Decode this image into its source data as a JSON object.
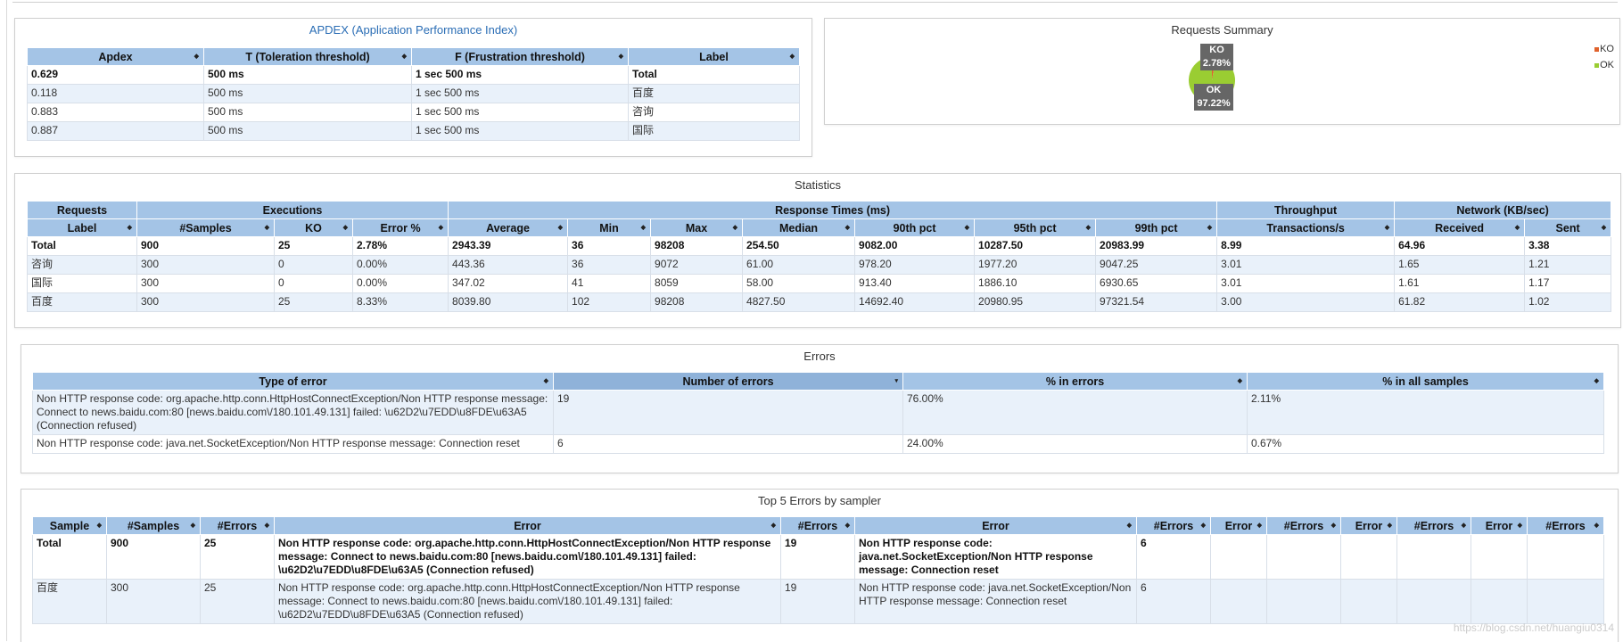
{
  "apdex": {
    "title": "APDEX (Application Performance Index)",
    "headers": [
      "Apdex",
      "T (Toleration threshold)",
      "F (Frustration threshold)",
      "Label"
    ],
    "rows": [
      [
        "0.629",
        "500 ms",
        "1 sec 500 ms",
        "Total"
      ],
      [
        "0.118",
        "500 ms",
        "1 sec 500 ms",
        "百度"
      ],
      [
        "0.883",
        "500 ms",
        "1 sec 500 ms",
        "咨询"
      ],
      [
        "0.887",
        "500 ms",
        "1 sec 500 ms",
        "国际"
      ]
    ]
  },
  "requests_summary": {
    "title": "Requests Summary",
    "ko_label": "KO",
    "ko_pct": "2.78%",
    "ok_label": "OK",
    "ok_pct": "97.22%",
    "legend_ko": "KO",
    "legend_ok": "OK",
    "ko_color": "#e0622c",
    "ok_color": "#9acd32"
  },
  "chart_data": {
    "type": "pie",
    "categories": [
      "KO",
      "OK"
    ],
    "values": [
      2.78,
      97.22
    ],
    "title": "Requests Summary",
    "legend": "top-right"
  },
  "statistics": {
    "title": "Statistics",
    "group_headers": [
      "Requests",
      "Executions",
      "Response Times (ms)",
      "Throughput",
      "Network (KB/sec)"
    ],
    "headers": [
      "Label",
      "#Samples",
      "KO",
      "Error %",
      "Average",
      "Min",
      "Max",
      "Median",
      "90th pct",
      "95th pct",
      "99th pct",
      "Transactions/s",
      "Received",
      "Sent"
    ],
    "rows": [
      [
        "Total",
        "900",
        "25",
        "2.78%",
        "2943.39",
        "36",
        "98208",
        "254.50",
        "9082.00",
        "10287.50",
        "20983.99",
        "8.99",
        "64.96",
        "3.38"
      ],
      [
        "咨询",
        "300",
        "0",
        "0.00%",
        "443.36",
        "36",
        "9072",
        "61.00",
        "978.20",
        "1977.20",
        "9047.25",
        "3.01",
        "1.65",
        "1.21"
      ],
      [
        "国际",
        "300",
        "0",
        "0.00%",
        "347.02",
        "41",
        "8059",
        "58.00",
        "913.40",
        "1886.10",
        "6930.65",
        "3.01",
        "1.61",
        "1.17"
      ],
      [
        "百度",
        "300",
        "25",
        "8.33%",
        "8039.80",
        "102",
        "98208",
        "4827.50",
        "14692.40",
        "20980.95",
        "97321.54",
        "3.00",
        "61.82",
        "1.02"
      ]
    ]
  },
  "errors": {
    "title": "Errors",
    "headers": [
      "Type of error",
      "Number of errors",
      "% in errors",
      "% in all samples"
    ],
    "rows": [
      [
        "Non HTTP response code: org.apache.http.conn.HttpHostConnectException/Non HTTP response message: Connect to news.baidu.com:80 [news.baidu.com\\/180.101.49.131] failed: \\u62D2\\u7EDD\\u8FDE\\u63A5 (Connection refused)",
        "19",
        "76.00%",
        "2.11%"
      ],
      [
        "Non HTTP response code: java.net.SocketException/Non HTTP response message: Connection reset",
        "6",
        "24.00%",
        "0.67%"
      ]
    ]
  },
  "top5": {
    "title": "Top 5 Errors by sampler",
    "headers": [
      "Sample",
      "#Samples",
      "#Errors",
      "Error",
      "#Errors",
      "Error",
      "#Errors",
      "Error",
      "#Errors",
      "Error",
      "#Errors",
      "Error",
      "#Errors"
    ],
    "rows": [
      [
        "Total",
        "900",
        "25",
        "Non HTTP response code: org.apache.http.conn.HttpHostConnectException/Non HTTP response message: Connect to news.baidu.com:80 [news.baidu.com\\/180.101.49.131] failed: \\u62D2\\u7EDD\\u8FDE\\u63A5 (Connection refused)",
        "19",
        "Non HTTP response code: java.net.SocketException/Non HTTP response message: Connection reset",
        "6",
        "",
        "",
        "",
        "",
        "",
        ""
      ],
      [
        "百度",
        "300",
        "25",
        "Non HTTP response code: org.apache.http.conn.HttpHostConnectException/Non HTTP response message: Connect to news.baidu.com:80 [news.baidu.com\\/180.101.49.131] failed: \\u62D2\\u7EDD\\u8FDE\\u63A5 (Connection refused)",
        "19",
        "Non HTTP response code: java.net.SocketException/Non HTTP response message: Connection reset",
        "6",
        "",
        "",
        "",
        "",
        "",
        ""
      ]
    ]
  },
  "watermark": "https://blog.csdn.net/huangiu0314"
}
